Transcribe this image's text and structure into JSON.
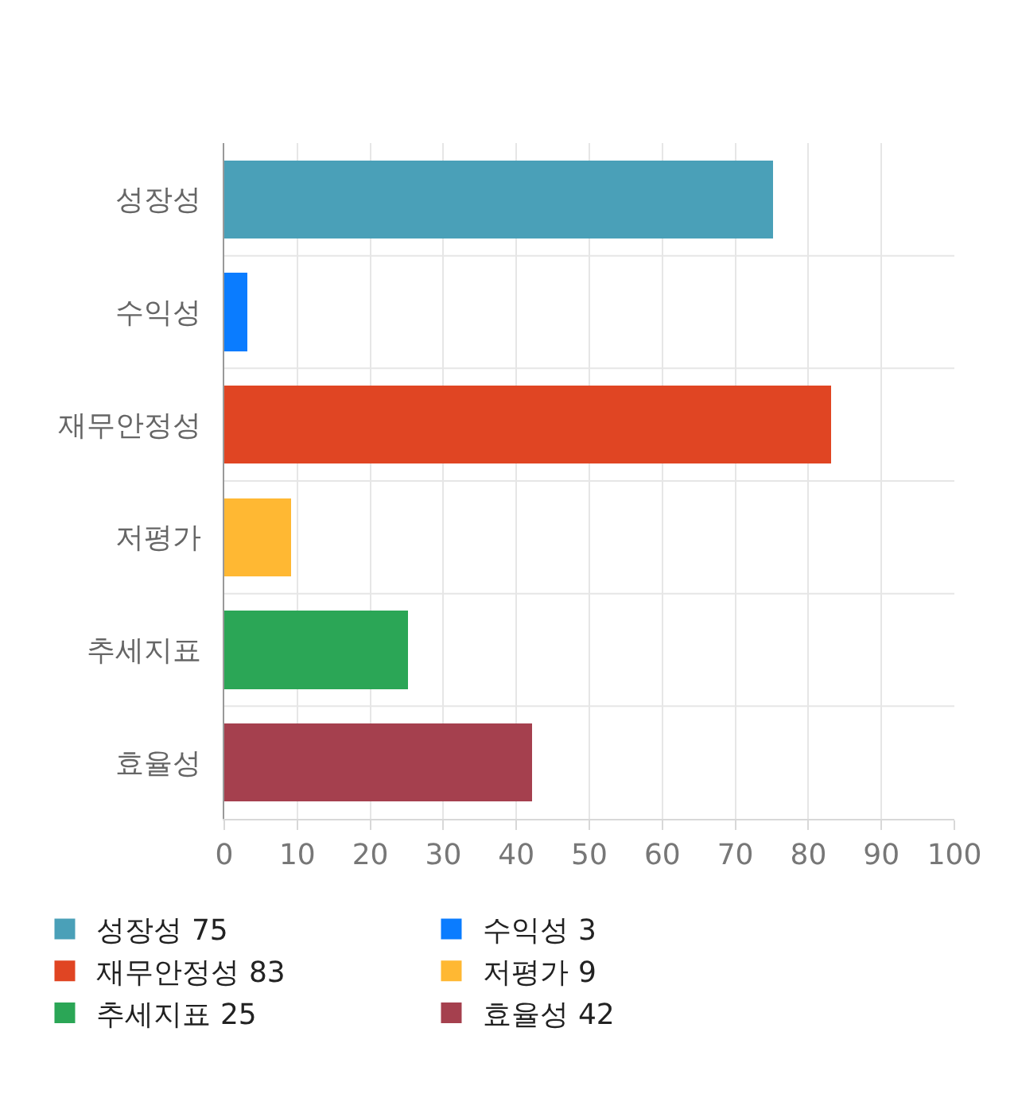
{
  "chart_data": {
    "type": "bar",
    "orientation": "horizontal",
    "stacked": true,
    "categories": [
      "성장성",
      "수익성",
      "재무안정성",
      "저평가",
      "추세지표",
      "효율성"
    ],
    "series": [
      {
        "name": "성장성 75",
        "color": "#4aa0b8",
        "values": [
          75,
          null,
          null,
          null,
          null,
          null
        ]
      },
      {
        "name": "수익성 3",
        "color": "#0a7cff",
        "values": [
          null,
          3,
          null,
          null,
          null,
          null
        ]
      },
      {
        "name": "재무안정성 83",
        "color": "#e04523",
        "values": [
          null,
          null,
          83,
          null,
          null,
          null
        ]
      },
      {
        "name": "저평가 9",
        "color": "#ffb833",
        "values": [
          null,
          null,
          null,
          9,
          null,
          null
        ]
      },
      {
        "name": "추세지표 25",
        "color": "#2ba656",
        "values": [
          null,
          null,
          null,
          null,
          25,
          null
        ]
      },
      {
        "name": "효율성 42",
        "color": "#a5404e",
        "values": [
          null,
          null,
          null,
          null,
          null,
          42
        ]
      }
    ],
    "xlim": [
      0,
      100
    ],
    "xticks": [
      0,
      10,
      20,
      30,
      40,
      50,
      60,
      70,
      80,
      90,
      100
    ],
    "grid": true,
    "legend": "bottom"
  }
}
